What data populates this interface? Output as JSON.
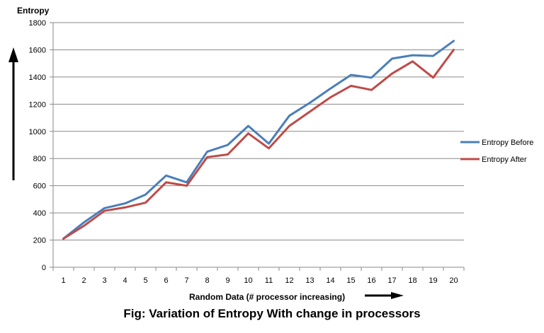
{
  "caption": "Fig: Variation of Entropy With change in processors",
  "chart_data": {
    "type": "line",
    "title": "",
    "ylabel": "Entropy",
    "xlabel": "Random Data (# processor increasing)",
    "x": [
      1,
      2,
      3,
      4,
      5,
      6,
      7,
      8,
      9,
      10,
      11,
      12,
      13,
      14,
      15,
      16,
      17,
      18,
      19,
      20
    ],
    "ylim": [
      0,
      1800
    ],
    "yticks": [
      0,
      200,
      400,
      600,
      800,
      1000,
      1200,
      1400,
      1600,
      1800
    ],
    "grid": true,
    "legend_position": "right",
    "series": [
      {
        "name": "Entropy Before",
        "color": "#4a7ebb",
        "values": [
          210,
          330,
          435,
          470,
          535,
          675,
          625,
          850,
          900,
          1040,
          910,
          1115,
          1210,
          1315,
          1415,
          1395,
          1535,
          1560,
          1555,
          1665
        ]
      },
      {
        "name": "Entropy After",
        "color": "#be4b48",
        "values": [
          210,
          305,
          415,
          440,
          475,
          625,
          600,
          810,
          830,
          985,
          875,
          1040,
          1145,
          1250,
          1335,
          1305,
          1425,
          1515,
          1395,
          1600
        ]
      }
    ]
  }
}
